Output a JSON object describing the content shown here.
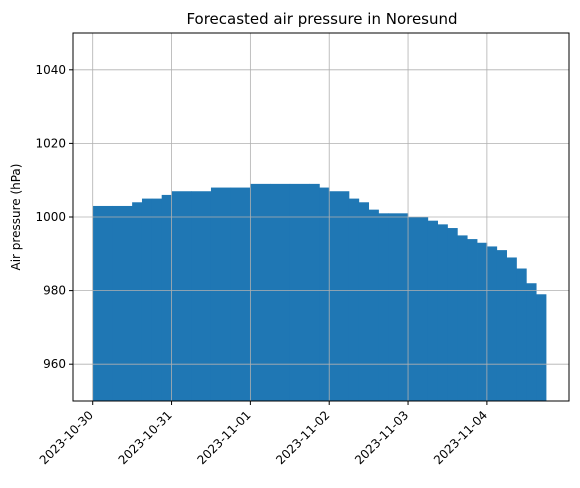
{
  "chart_data": {
    "type": "bar",
    "title": "Forecasted air pressure in Noresund",
    "xlabel": "",
    "ylabel": "Air pressure (hPa)",
    "ylim": [
      950,
      1050
    ],
    "xlim": [
      "2023-10-29T18:00",
      "2023-11-05T01:00"
    ],
    "grid": true,
    "color": "#1f77b4",
    "x_ticks": [
      "2023-10-30",
      "2023-10-31",
      "2023-11-01",
      "2023-11-02",
      "2023-11-03",
      "2023-11-04"
    ],
    "y_ticks": [
      "960",
      "980",
      "1000",
      "1020",
      "1040"
    ],
    "x": [
      "2023-10-30T00:00",
      "2023-10-30T06:00",
      "2023-10-30T12:00",
      "2023-10-30T15:00",
      "2023-10-30T18:00",
      "2023-10-30T21:00",
      "2023-10-31T00:00",
      "2023-10-31T06:00",
      "2023-10-31T12:00",
      "2023-10-31T18:00",
      "2023-11-01T00:00",
      "2023-11-01T06:00",
      "2023-11-01T12:00",
      "2023-11-01T18:00",
      "2023-11-01T21:00",
      "2023-11-02T00:00",
      "2023-11-02T06:00",
      "2023-11-02T09:00",
      "2023-11-02T12:00",
      "2023-11-02T15:00",
      "2023-11-02T18:00",
      "2023-11-03T00:00",
      "2023-11-03T06:00",
      "2023-11-03T09:00",
      "2023-11-03T12:00",
      "2023-11-03T15:00",
      "2023-11-03T18:00",
      "2023-11-03T21:00",
      "2023-11-04T00:00",
      "2023-11-04T03:00",
      "2023-11-04T06:00",
      "2023-11-04T09:00",
      "2023-11-04T12:00",
      "2023-11-04T15:00"
    ],
    "x_end": "2023-11-04T18:00",
    "values": [
      1003,
      1003,
      1004,
      1005,
      1005,
      1006,
      1007,
      1007,
      1008,
      1008,
      1009,
      1009,
      1009,
      1009,
      1008,
      1007,
      1005,
      1004,
      1002,
      1001,
      1001,
      1000,
      999,
      998,
      997,
      995,
      994,
      993,
      992,
      991,
      989,
      986,
      982,
      979
    ]
  }
}
